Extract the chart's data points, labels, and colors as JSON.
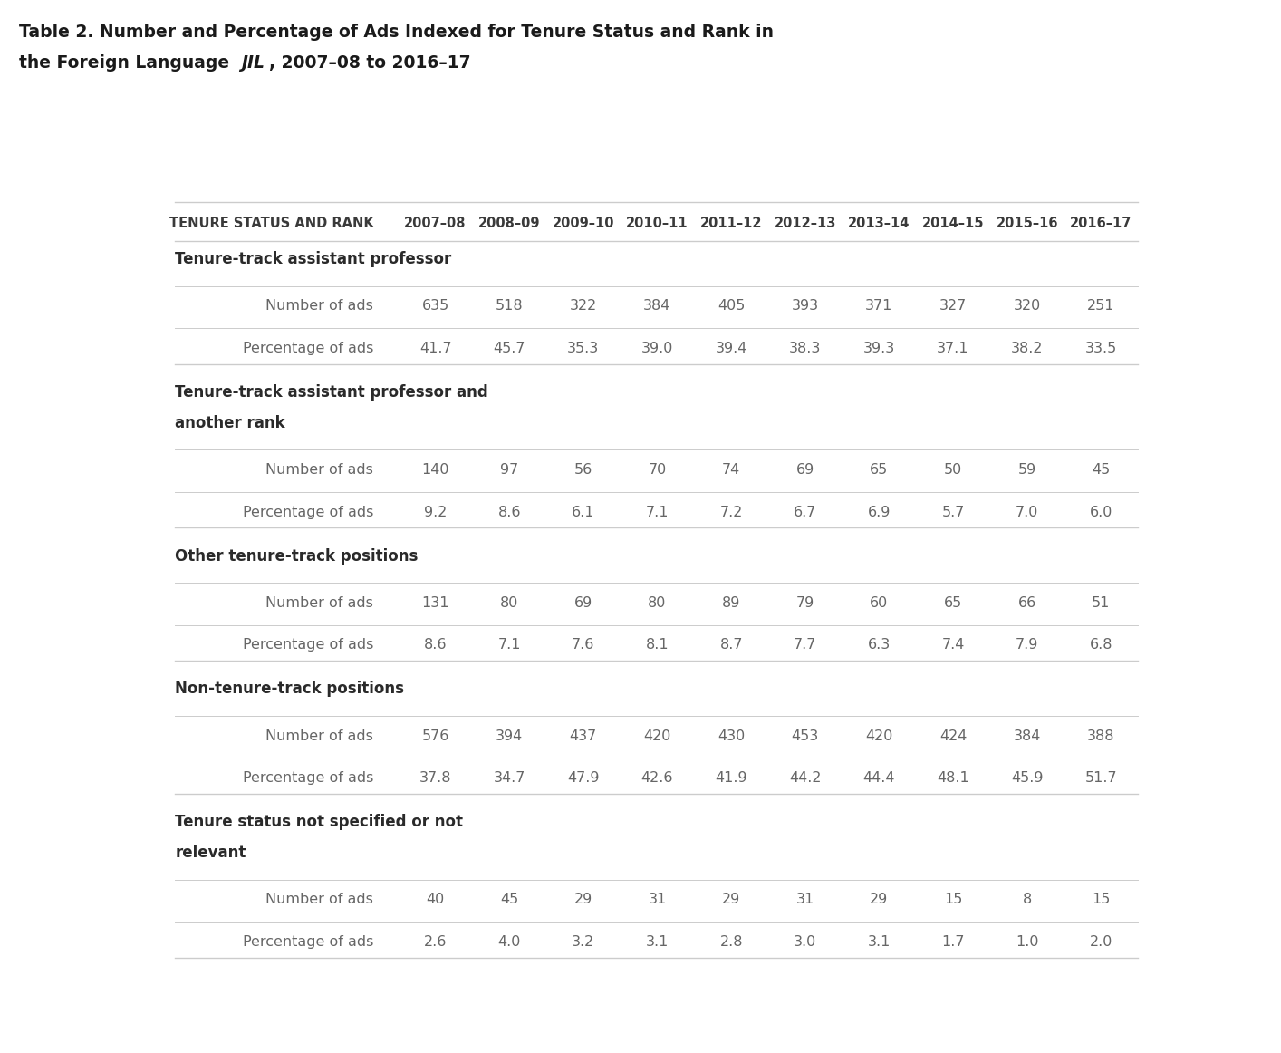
{
  "title_line1": "Table 2. Number and Percentage of Ads Indexed for Tenure Status and Rank in",
  "title_line2_pre": "the Foreign Language ",
  "title_line2_jil": "JIL",
  "title_line2_post": ", 2007–08 to 2016–17",
  "header_col": "TENURE STATUS AND RANK",
  "years": [
    "2007–08",
    "2008–09",
    "2009–10",
    "2010–11",
    "2011–12",
    "2012–13",
    "2013–14",
    "2014–15",
    "2015–16",
    "2016–17"
  ],
  "sections": [
    {
      "label": [
        "Tenure-track assistant professor"
      ],
      "rows": [
        {
          "name": "Number of ads",
          "values": [
            635,
            518,
            322,
            384,
            405,
            393,
            371,
            327,
            320,
            251
          ]
        },
        {
          "name": "Percentage of ads",
          "values": [
            41.7,
            45.7,
            35.3,
            39.0,
            39.4,
            38.3,
            39.3,
            37.1,
            38.2,
            33.5
          ]
        }
      ]
    },
    {
      "label": [
        "Tenure-track assistant professor and",
        "another rank"
      ],
      "rows": [
        {
          "name": "Number of ads",
          "values": [
            140,
            97,
            56,
            70,
            74,
            69,
            65,
            50,
            59,
            45
          ]
        },
        {
          "name": "Percentage of ads",
          "values": [
            9.2,
            8.6,
            6.1,
            7.1,
            7.2,
            6.7,
            6.9,
            5.7,
            7.0,
            6.0
          ]
        }
      ]
    },
    {
      "label": [
        "Other tenure-track positions"
      ],
      "rows": [
        {
          "name": "Number of ads",
          "values": [
            131,
            80,
            69,
            80,
            89,
            79,
            60,
            65,
            66,
            51
          ]
        },
        {
          "name": "Percentage of ads",
          "values": [
            8.6,
            7.1,
            7.6,
            8.1,
            8.7,
            7.7,
            6.3,
            7.4,
            7.9,
            6.8
          ]
        }
      ]
    },
    {
      "label": [
        "Non-tenure-track positions"
      ],
      "rows": [
        {
          "name": "Number of ads",
          "values": [
            576,
            394,
            437,
            420,
            430,
            453,
            420,
            424,
            384,
            388
          ]
        },
        {
          "name": "Percentage of ads",
          "values": [
            37.8,
            34.7,
            47.9,
            42.6,
            41.9,
            44.2,
            44.4,
            48.1,
            45.9,
            51.7
          ]
        }
      ]
    },
    {
      "label": [
        "Tenure status not specified or not",
        "relevant"
      ],
      "rows": [
        {
          "name": "Number of ads",
          "values": [
            40,
            45,
            29,
            31,
            29,
            31,
            29,
            15,
            8,
            15
          ]
        },
        {
          "name": "Percentage of ads",
          "values": [
            2.6,
            4.0,
            3.2,
            3.1,
            2.8,
            3.0,
            3.1,
            1.7,
            1.0,
            2.0
          ]
        }
      ]
    }
  ],
  "bg_color": "#ffffff",
  "title_color": "#1a1a1a",
  "header_color": "#3a3a3a",
  "section_label_color": "#2a2a2a",
  "row_label_color": "#666666",
  "data_color": "#666666",
  "line_color": "#cccccc",
  "title_fontsize": 13.5,
  "header_fontsize": 10.5,
  "section_fontsize": 12.0,
  "row_fontsize": 11.5,
  "data_fontsize": 11.5,
  "fig_width": 14.14,
  "fig_height": 11.62
}
